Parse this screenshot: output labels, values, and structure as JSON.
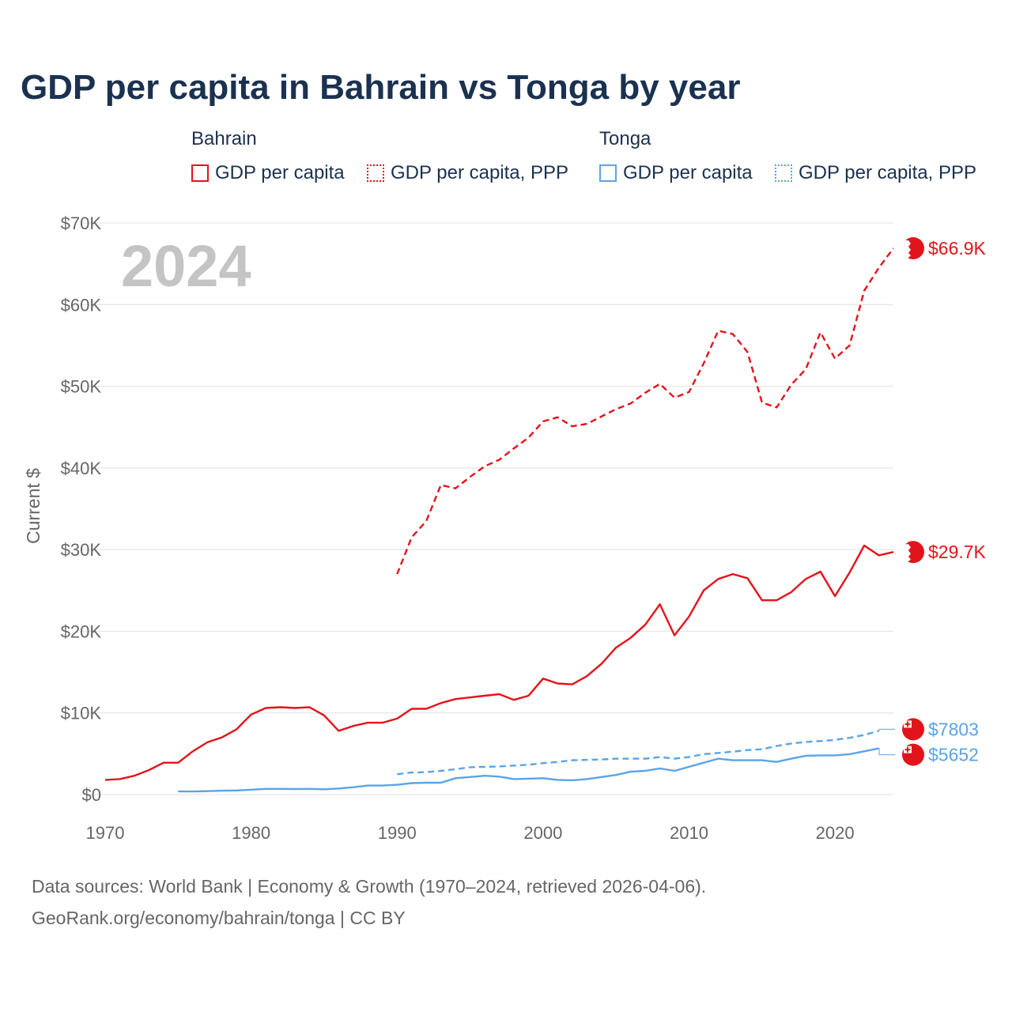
{
  "title": "GDP per capita in Bahrain vs Tonga by year",
  "legend": {
    "groups": [
      {
        "country": "Bahrain",
        "items": [
          "GDP per capita",
          "GDP per capita, PPP"
        ],
        "color": "#e3131b"
      },
      {
        "country": "Tonga",
        "items": [
          "GDP per capita",
          "GDP per capita, PPP"
        ],
        "color": "#5ba4e6"
      }
    ]
  },
  "chart_data": {
    "type": "line",
    "title": "GDP per capita in Bahrain vs Tonga by year",
    "year_label": "2024",
    "ylabel": "Current $",
    "xlabel": "",
    "xlim": [
      1970,
      2024
    ],
    "ylim": [
      0,
      70000
    ],
    "x_ticks": [
      1970,
      1980,
      1990,
      2000,
      2010,
      2020
    ],
    "y_ticks": [
      0,
      10000,
      20000,
      30000,
      40000,
      50000,
      60000,
      70000
    ],
    "y_tick_labels": [
      "$0",
      "$10K",
      "$20K",
      "$30K",
      "$40K",
      "$50K",
      "$60K",
      "$70K"
    ],
    "grid": true,
    "series": [
      {
        "name": "Bahrain GDP per capita",
        "country": "Bahrain",
        "color": "#e3131b",
        "dash": false,
        "end_label": "$29.7K",
        "points": [
          [
            1970,
            1800
          ],
          [
            1971,
            1900
          ],
          [
            1972,
            2300
          ],
          [
            1973,
            3000
          ],
          [
            1974,
            3900
          ],
          [
            1975,
            3900
          ],
          [
            1976,
            5300
          ],
          [
            1977,
            6400
          ],
          [
            1978,
            7000
          ],
          [
            1979,
            8000
          ],
          [
            1980,
            9800
          ],
          [
            1981,
            10600
          ],
          [
            1982,
            10700
          ],
          [
            1983,
            10600
          ],
          [
            1984,
            10700
          ],
          [
            1985,
            9700
          ],
          [
            1986,
            7800
          ],
          [
            1987,
            8400
          ],
          [
            1988,
            8800
          ],
          [
            1989,
            8800
          ],
          [
            1990,
            9300
          ],
          [
            1991,
            10500
          ],
          [
            1992,
            10500
          ],
          [
            1993,
            11200
          ],
          [
            1994,
            11700
          ],
          [
            1995,
            11900
          ],
          [
            1996,
            12100
          ],
          [
            1997,
            12300
          ],
          [
            1998,
            11600
          ],
          [
            1999,
            12100
          ],
          [
            2000,
            14200
          ],
          [
            2001,
            13600
          ],
          [
            2002,
            13500
          ],
          [
            2003,
            14500
          ],
          [
            2004,
            16000
          ],
          [
            2005,
            18000
          ],
          [
            2006,
            19200
          ],
          [
            2007,
            20800
          ],
          [
            2008,
            23300
          ],
          [
            2009,
            19500
          ],
          [
            2010,
            21800
          ],
          [
            2011,
            25000
          ],
          [
            2012,
            26400
          ],
          [
            2013,
            27000
          ],
          [
            2014,
            26500
          ],
          [
            2015,
            23800
          ],
          [
            2016,
            23800
          ],
          [
            2017,
            24800
          ],
          [
            2018,
            26400
          ],
          [
            2019,
            27300
          ],
          [
            2020,
            24300
          ],
          [
            2021,
            27200
          ],
          [
            2022,
            30500
          ],
          [
            2023,
            29300
          ],
          [
            2024,
            29700
          ]
        ]
      },
      {
        "name": "Bahrain GDP per capita, PPP",
        "country": "Bahrain",
        "color": "#e3131b",
        "dash": true,
        "end_label": "$66.9K",
        "points": [
          [
            1990,
            27000
          ],
          [
            1991,
            31500
          ],
          [
            1992,
            33500
          ],
          [
            1993,
            37900
          ],
          [
            1994,
            37500
          ],
          [
            1995,
            38900
          ],
          [
            1996,
            40200
          ],
          [
            1997,
            41000
          ],
          [
            1998,
            42400
          ],
          [
            1999,
            43700
          ],
          [
            2000,
            45700
          ],
          [
            2001,
            46200
          ],
          [
            2002,
            45100
          ],
          [
            2003,
            45400
          ],
          [
            2004,
            46300
          ],
          [
            2005,
            47200
          ],
          [
            2006,
            47900
          ],
          [
            2007,
            49200
          ],
          [
            2008,
            50300
          ],
          [
            2009,
            48600
          ],
          [
            2010,
            49300
          ],
          [
            2011,
            52800
          ],
          [
            2012,
            56800
          ],
          [
            2013,
            56400
          ],
          [
            2014,
            54200
          ],
          [
            2015,
            48000
          ],
          [
            2016,
            47400
          ],
          [
            2017,
            50200
          ],
          [
            2018,
            52100
          ],
          [
            2019,
            56600
          ],
          [
            2020,
            53400
          ],
          [
            2021,
            55000
          ],
          [
            2022,
            61700
          ],
          [
            2023,
            64500
          ],
          [
            2024,
            66900
          ]
        ]
      },
      {
        "name": "Tonga GDP per capita",
        "country": "Tonga",
        "color": "#5ba4e6",
        "dash": false,
        "end_label": "$5652",
        "last_year": 2023,
        "points": [
          [
            1975,
            400
          ],
          [
            1976,
            380
          ],
          [
            1977,
            420
          ],
          [
            1978,
            470
          ],
          [
            1979,
            500
          ],
          [
            1980,
            600
          ],
          [
            1981,
            700
          ],
          [
            1982,
            700
          ],
          [
            1983,
            680
          ],
          [
            1984,
            700
          ],
          [
            1985,
            650
          ],
          [
            1986,
            750
          ],
          [
            1987,
            900
          ],
          [
            1988,
            1100
          ],
          [
            1989,
            1100
          ],
          [
            1990,
            1200
          ],
          [
            1991,
            1400
          ],
          [
            1992,
            1450
          ],
          [
            1993,
            1450
          ],
          [
            1994,
            2000
          ],
          [
            1995,
            2150
          ],
          [
            1996,
            2300
          ],
          [
            1997,
            2200
          ],
          [
            1998,
            1900
          ],
          [
            1999,
            1950
          ],
          [
            2000,
            2000
          ],
          [
            2001,
            1800
          ],
          [
            2002,
            1750
          ],
          [
            2003,
            1900
          ],
          [
            2004,
            2150
          ],
          [
            2005,
            2400
          ],
          [
            2006,
            2800
          ],
          [
            2007,
            2900
          ],
          [
            2008,
            3200
          ],
          [
            2009,
            2900
          ],
          [
            2010,
            3400
          ],
          [
            2011,
            3900
          ],
          [
            2012,
            4400
          ],
          [
            2013,
            4200
          ],
          [
            2014,
            4200
          ],
          [
            2015,
            4200
          ],
          [
            2016,
            4000
          ],
          [
            2017,
            4400
          ],
          [
            2018,
            4750
          ],
          [
            2019,
            4800
          ],
          [
            2020,
            4800
          ],
          [
            2021,
            4950
          ],
          [
            2022,
            5300
          ],
          [
            2023,
            5652
          ]
        ]
      },
      {
        "name": "Tonga GDP per capita, PPP",
        "country": "Tonga",
        "color": "#5ba4e6",
        "dash": true,
        "end_label": "$7803",
        "last_year": 2023,
        "points": [
          [
            1990,
            2500
          ],
          [
            1991,
            2700
          ],
          [
            1992,
            2750
          ],
          [
            1993,
            2900
          ],
          [
            1994,
            3100
          ],
          [
            1995,
            3350
          ],
          [
            1996,
            3400
          ],
          [
            1997,
            3450
          ],
          [
            1998,
            3550
          ],
          [
            1999,
            3650
          ],
          [
            2000,
            3850
          ],
          [
            2001,
            4000
          ],
          [
            2002,
            4200
          ],
          [
            2003,
            4250
          ],
          [
            2004,
            4300
          ],
          [
            2005,
            4400
          ],
          [
            2006,
            4400
          ],
          [
            2007,
            4400
          ],
          [
            2008,
            4600
          ],
          [
            2009,
            4400
          ],
          [
            2010,
            4600
          ],
          [
            2011,
            4950
          ],
          [
            2012,
            5100
          ],
          [
            2013,
            5250
          ],
          [
            2014,
            5450
          ],
          [
            2015,
            5550
          ],
          [
            2016,
            5950
          ],
          [
            2017,
            6250
          ],
          [
            2018,
            6450
          ],
          [
            2019,
            6550
          ],
          [
            2020,
            6700
          ],
          [
            2021,
            6950
          ],
          [
            2022,
            7300
          ],
          [
            2023,
            7803
          ]
        ]
      }
    ]
  },
  "sources": {
    "line1": "Data sources: World Bank | Economy & Growth (1970–2024, retrieved 2026-04-06).",
    "line2": "GeoRank.org/economy/bahrain/tonga | CC BY"
  }
}
